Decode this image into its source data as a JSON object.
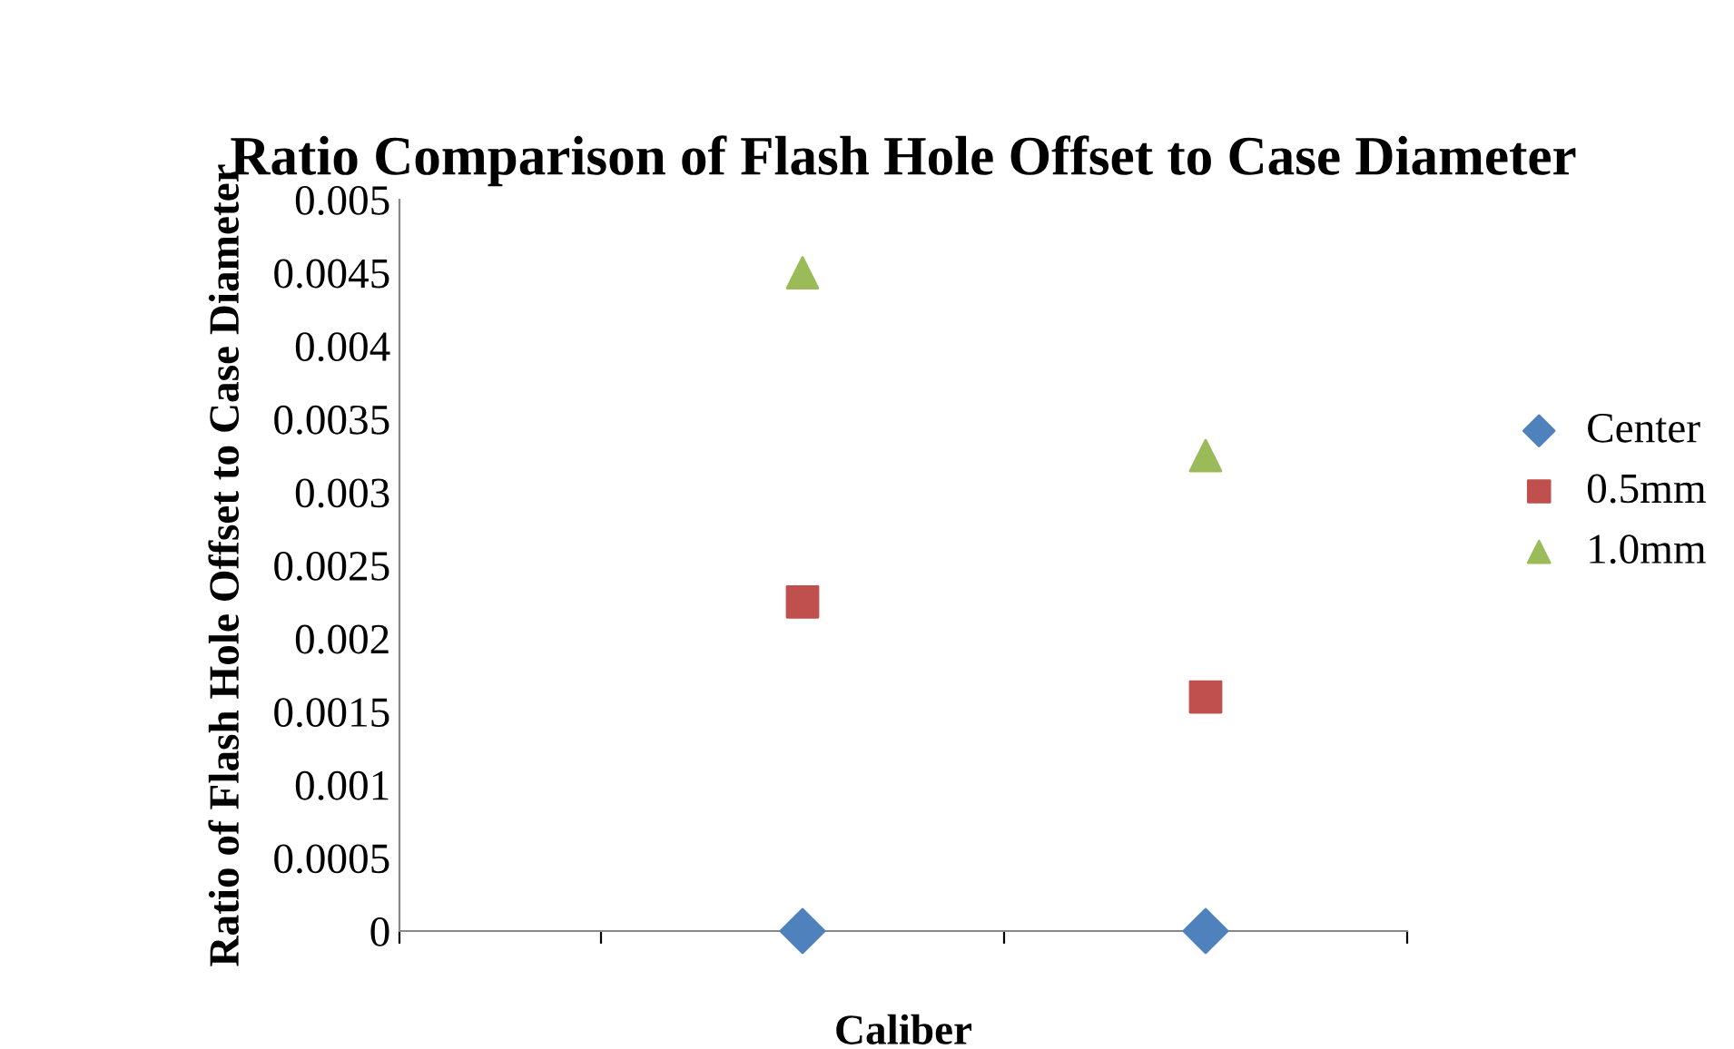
{
  "chart_data": {
    "type": "scatter",
    "title": "Ratio Comparison of Flash Hole Offset to Case Diameter",
    "xlabel": "Caliber",
    "ylabel": "Ratio of Flash Hole Offset to Case Diameter",
    "categories": [
      null,
      null
    ],
    "series": [
      {
        "name": "Center",
        "color": "#4f81bd",
        "marker": "diamond",
        "values": [
          0,
          0
        ]
      },
      {
        "name": "0.5mm",
        "color": "#c0504d",
        "marker": "square",
        "values": [
          0.00225,
          0.0016
        ]
      },
      {
        "name": "1.0mm",
        "color": "#9bbb59",
        "marker": "triangle",
        "values": [
          0.0045,
          0.00325
        ]
      }
    ],
    "ylim": [
      0,
      0.005
    ],
    "yticks": [
      0,
      0.0005,
      0.001,
      0.0015,
      0.002,
      0.0025,
      0.003,
      0.0035,
      0.004,
      0.0045,
      0.005
    ],
    "grid": false,
    "legend": "right",
    "tick_labels": "y"
  }
}
